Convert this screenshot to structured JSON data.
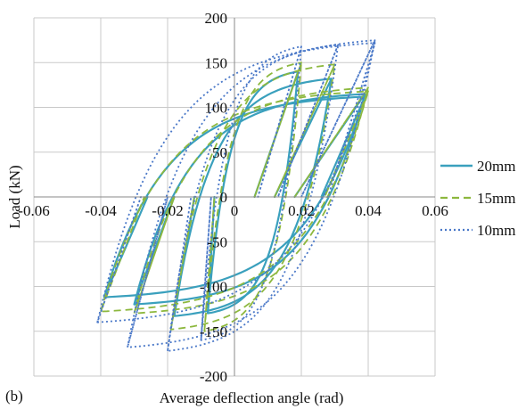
{
  "chart_data": {
    "type": "line",
    "panel_label": "(b)",
    "xlabel": "Average deflection angle (rad)",
    "ylabel": "Load (kN)",
    "xlim": [
      -0.06,
      0.06
    ],
    "ylim": [
      -200,
      200
    ],
    "x_ticks": [
      -0.06,
      -0.04,
      -0.02,
      0,
      0.02,
      0.04,
      0.06
    ],
    "x_tick_labels": [
      "-0.06",
      "-0.04",
      "-0.02",
      "0",
      "0.02",
      "0.04",
      "0.06"
    ],
    "y_ticks": [
      -200,
      -150,
      -100,
      -50,
      0,
      50,
      100,
      150,
      200
    ],
    "y_tick_labels": [
      "-200",
      "-150",
      "-100",
      "-50",
      "0",
      "50",
      "100",
      "150",
      "200"
    ],
    "grid": true,
    "legend_position": "right",
    "series": [
      {
        "name": "20mm",
        "color": "#3aa0bd",
        "dash": "solid",
        "loops": [
          {
            "xmax": 0.019,
            "ymax": 140,
            "xmin": -0.008,
            "ymin": -130,
            "zmax": 0.006,
            "zmin": -0.006
          },
          {
            "xmax": 0.029,
            "ymax": 132,
            "xmin": -0.018,
            "ymin": -133,
            "zmax": 0.012,
            "zmin": -0.012
          },
          {
            "xmax": 0.039,
            "ymax": 115,
            "xmin": -0.03,
            "ymin": -120,
            "zmax": 0.018,
            "zmin": -0.018
          },
          {
            "xmax": 0.039,
            "ymax": 112,
            "xmin": -0.039,
            "ymin": -112,
            "zmax": 0.026,
            "zmin": -0.026
          }
        ]
      },
      {
        "name": "15mm",
        "color": "#8db83e",
        "dash": "8,5",
        "loops": [
          {
            "xmax": 0.02,
            "ymax": 150,
            "xmin": -0.009,
            "ymin": -150,
            "zmax": 0.006,
            "zmin": -0.006
          },
          {
            "xmax": 0.03,
            "ymax": 148,
            "xmin": -0.019,
            "ymin": -148,
            "zmax": 0.012,
            "zmin": -0.012
          },
          {
            "xmax": 0.04,
            "ymax": 122,
            "xmin": -0.03,
            "ymin": -130,
            "zmax": 0.018,
            "zmin": -0.018
          },
          {
            "xmax": 0.04,
            "ymax": 118,
            "xmin": -0.04,
            "ymin": -128,
            "zmax": 0.027,
            "zmin": -0.027
          }
        ]
      },
      {
        "name": "10mm",
        "color": "#4a78c8",
        "dash": "2,3",
        "loops": [
          {
            "xmax": 0.02,
            "ymax": 168,
            "xmin": -0.01,
            "ymin": -160,
            "zmax": 0.007,
            "zmin": -0.007
          },
          {
            "xmax": 0.031,
            "ymax": 170,
            "xmin": -0.02,
            "ymin": -172,
            "zmax": 0.013,
            "zmin": -0.013
          },
          {
            "xmax": 0.042,
            "ymax": 175,
            "xmin": -0.032,
            "ymin": -168,
            "zmax": 0.02,
            "zmin": -0.02
          },
          {
            "xmax": 0.042,
            "ymax": 172,
            "xmin": -0.041,
            "ymin": -140,
            "zmax": 0.028,
            "zmin": -0.028
          }
        ]
      }
    ]
  }
}
